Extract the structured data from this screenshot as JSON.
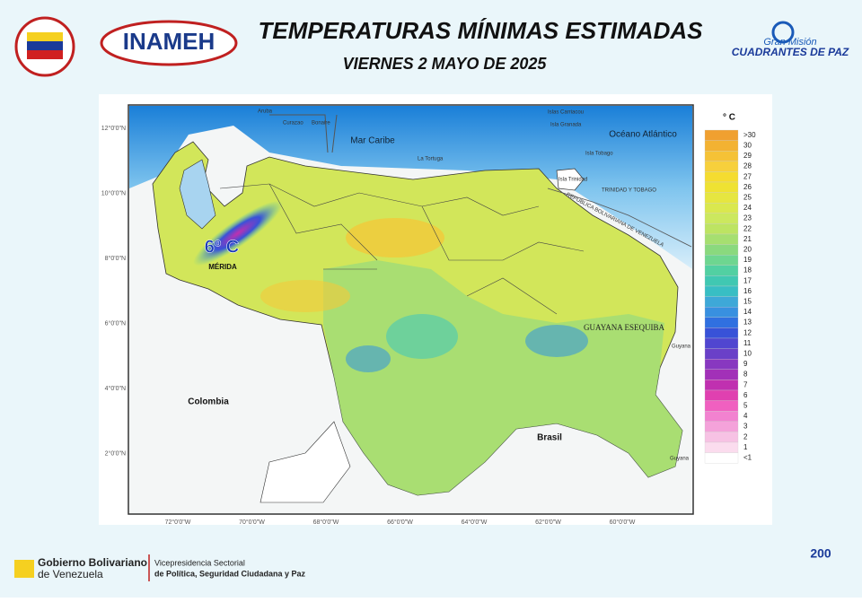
{
  "header": {
    "title": "TEMPERATURAS MÍNIMAS ESTIMADAS",
    "subtitle": "VIERNES 2 MAYO DE 2025",
    "logo_left": "INAMEH",
    "logo_right_top": "Gran Misión",
    "logo_right_bottom": "CUADRANTES DE PAZ"
  },
  "map": {
    "labels": {
      "sea": "Mar Caribe",
      "ocean": "Océano Atlántico",
      "colombia": "Colombia",
      "brasil": "Brasil",
      "esequiba": "GUAYANA ESEQUIBA",
      "min_value": "6º C",
      "min_place": "MÉRIDA",
      "aruba": "Aruba",
      "curazao": "Curazao",
      "bonaire": "Bonaire",
      "tortuga": "La Tortuga",
      "carriacou": "Islas Carriacou",
      "granada": "Isla Granada",
      "tobago": "Isla Tobago",
      "trinidad": "Isla Trinidad",
      "tt": "TRINIDAD Y TOBAGO",
      "rbv": "REPUBLICA BOLIVARIANA DE VENEZUELA",
      "guyana1": "Guyana",
      "guyana2": "Guyana"
    },
    "lat_labels": [
      "12°0'0\"N",
      "10°0'0\"N",
      "8°0'0\"N",
      "6°0'0\"N",
      "4°0'0\"N",
      "2°0'0\"N"
    ],
    "lon_labels": [
      "72°0'0\"W",
      "70°0'0\"W",
      "68°0'0\"W",
      "66°0'0\"W",
      "64°0'0\"W",
      "62°0'0\"W",
      "60°0'0\"W"
    ]
  },
  "legend": {
    "unit": "° C",
    "items": [
      {
        "label": ">30",
        "color": "#f0a030"
      },
      {
        "label": "30",
        "color": "#f3b232"
      },
      {
        "label": "29",
        "color": "#f5c236"
      },
      {
        "label": "28",
        "color": "#f7d03c"
      },
      {
        "label": "27",
        "color": "#f5dc30"
      },
      {
        "label": "26",
        "color": "#efe232"
      },
      {
        "label": "25",
        "color": "#e6e640"
      },
      {
        "label": "24",
        "color": "#dae84e"
      },
      {
        "label": "23",
        "color": "#cce85e"
      },
      {
        "label": "22",
        "color": "#bde462"
      },
      {
        "label": "21",
        "color": "#a6df70"
      },
      {
        "label": "20",
        "color": "#8ad97e"
      },
      {
        "label": "19",
        "color": "#6ed690"
      },
      {
        "label": "18",
        "color": "#52d0a2"
      },
      {
        "label": "17",
        "color": "#40c8b2"
      },
      {
        "label": "16",
        "color": "#38bec4"
      },
      {
        "label": "15",
        "color": "#3ea8d8"
      },
      {
        "label": "14",
        "color": "#3890e0"
      },
      {
        "label": "13",
        "color": "#3070e0"
      },
      {
        "label": "12",
        "color": "#3852d8"
      },
      {
        "label": "11",
        "color": "#5046d0"
      },
      {
        "label": "10",
        "color": "#6a40c8"
      },
      {
        "label": "9",
        "color": "#8838c0"
      },
      {
        "label": "8",
        "color": "#a230b8"
      },
      {
        "label": "7",
        "color": "#c030b0"
      },
      {
        "label": "6",
        "color": "#e040b0"
      },
      {
        "label": "5",
        "color": "#f060c0"
      },
      {
        "label": "4",
        "color": "#f282d0"
      },
      {
        "label": "3",
        "color": "#f4a2da"
      },
      {
        "label": "2",
        "color": "#f7c2e4"
      },
      {
        "label": "1",
        "color": "#fbdcee"
      },
      {
        "label": "<1",
        "color": "#ffffff"
      }
    ]
  },
  "footer": {
    "gov_line1": "Gobierno Bolivariano",
    "gov_line2": "de Venezuela",
    "vice_line1": "Vicepresidencia Sectorial",
    "vice_line2": "de Política, Seguridad Ciudadana y Paz",
    "badge": "200"
  }
}
